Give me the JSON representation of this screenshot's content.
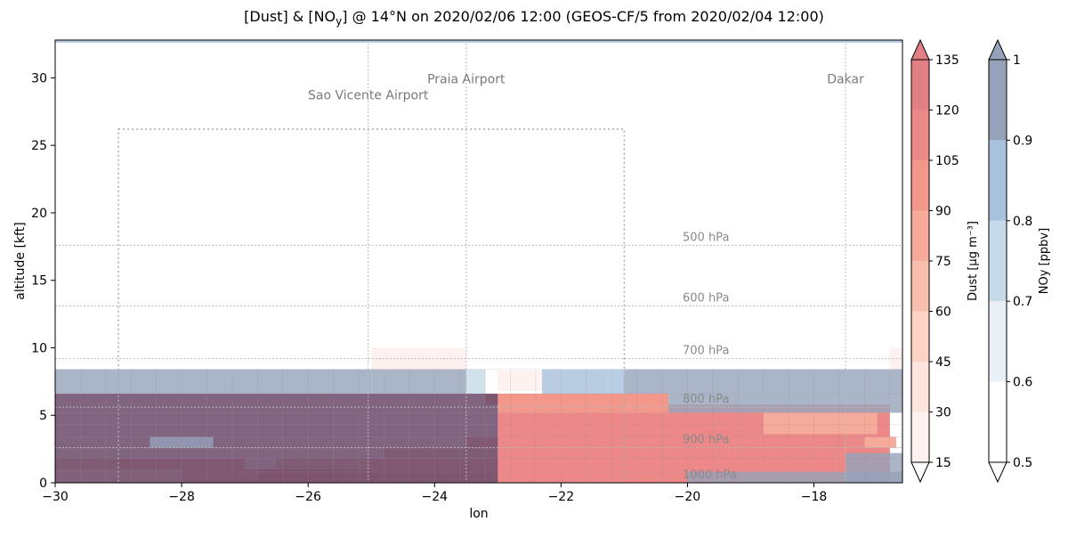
{
  "title": {
    "prefix": "[Dust] & [NO",
    "sub": "y",
    "suffix": "] @ 14°N on 2020/02/06 12:00 (GEOS-CF/5 from 2020/02/04 12:00)"
  },
  "chart_data": {
    "type": "heatmap",
    "xlabel": "lon",
    "ylabel": "altitude [kft]",
    "xlim": [
      -30,
      -16.6
    ],
    "ylim": [
      0,
      32.8
    ],
    "xticks": [
      -30,
      -28,
      -26,
      -24,
      -22,
      -20,
      -18
    ],
    "yticks": [
      0,
      5,
      10,
      15,
      20,
      25,
      30
    ],
    "grid": false,
    "pressure_levels": [
      {
        "label": "500 hPa",
        "alt": 17.6
      },
      {
        "label": "600 hPa",
        "alt": 13.1
      },
      {
        "label": "700 hPa",
        "alt": 9.2
      },
      {
        "label": "800 hPa",
        "alt": 5.6
      },
      {
        "label": "900 hPa",
        "alt": 2.6
      },
      {
        "label": "1000 hPa",
        "alt": 0.0
      }
    ],
    "locations": [
      {
        "name": "Sao Vicente Airport",
        "lon": -25.05,
        "label_alt": 28.4
      },
      {
        "name": "Praia Airport",
        "lon": -23.5,
        "label_alt": 29.6
      },
      {
        "name": "Dakar",
        "lon": -17.5,
        "label_alt": 29.6
      }
    ],
    "region_box": {
      "lon": [
        -29.0,
        -21.0
      ],
      "alt": [
        0,
        26.2
      ]
    },
    "dust_colorbar": {
      "label": "Dust [μg m⁻³]",
      "ticks": [
        15,
        30,
        45,
        60,
        75,
        90,
        105,
        120,
        135
      ],
      "extend": "both",
      "colors": [
        "#fdf2ef",
        "#fde4dc",
        "#fcd3c5",
        "#f9bfae",
        "#f6aa99",
        "#f2978a",
        "#ec8888",
        "#e27f84"
      ]
    },
    "noy_colorbar": {
      "label": "NOy [ppbv]",
      "ticks": [
        0.5,
        0.6,
        0.7,
        0.8,
        0.9,
        1.0
      ],
      "extend": "both",
      "colors": [
        "#ffffff",
        "#e9f1f7",
        "#c6dbe9",
        "#a8c2dd",
        "#95a2b9"
      ]
    },
    "dust_bands": [
      {
        "lon": [
          -30.0,
          -29.0
        ],
        "alt": [
          0.0,
          1.0
        ],
        "value": 35
      },
      {
        "lon": [
          -30.0,
          -29.0
        ],
        "alt": [
          1.0,
          1.8
        ],
        "value": 60
      },
      {
        "lon": [
          -29.0,
          -28.0
        ],
        "alt": [
          0.0,
          1.0
        ],
        "value": 45
      },
      {
        "lon": [
          -29.0,
          -27.0
        ],
        "alt": [
          1.0,
          1.8
        ],
        "value": 80
      },
      {
        "lon": [
          -28.0,
          -26.8
        ],
        "alt": [
          0.0,
          1.0
        ],
        "value": 85
      },
      {
        "lon": [
          -26.8,
          -25.5
        ],
        "alt": [
          0.0,
          1.0
        ],
        "value": 105
      },
      {
        "lon": [
          -25.5,
          -23.0
        ],
        "alt": [
          0.0,
          1.0
        ],
        "value": 90
      },
      {
        "lon": [
          -26.5,
          -25.0
        ],
        "alt": [
          1.0,
          1.8
        ],
        "value": 60
      },
      {
        "lon": [
          -25.0,
          -23.0
        ],
        "alt": [
          1.0,
          1.8
        ],
        "value": 85
      },
      {
        "lon": [
          -24.8,
          -23.0
        ],
        "alt": [
          1.8,
          2.6
        ],
        "value": 65
      },
      {
        "lon": [
          -23.5,
          -23.0
        ],
        "alt": [
          2.6,
          3.4
        ],
        "value": 75
      },
      {
        "lon": [
          -23.0,
          -16.8
        ],
        "alt": [
          0.0,
          5.2
        ],
        "value": 112
      },
      {
        "lon": [
          -23.0,
          -16.8
        ],
        "alt": [
          5.2,
          5.8
        ],
        "value": 100
      },
      {
        "lon": [
          -23.2,
          -20.3
        ],
        "alt": [
          5.8,
          6.6
        ],
        "value": 95
      },
      {
        "lon": [
          -18.8,
          -17.0
        ],
        "alt": [
          3.6,
          5.2
        ],
        "value": 80
      },
      {
        "lon": [
          -17.2,
          -16.7
        ],
        "alt": [
          2.6,
          3.4
        ],
        "value": 75
      },
      {
        "lon": [
          -25.0,
          -23.5
        ],
        "alt": [
          8.3,
          10.0
        ],
        "value": 22
      },
      {
        "lon": [
          -23.0,
          -21.3
        ],
        "alt": [
          6.8,
          8.3
        ],
        "value": 20
      },
      {
        "lon": [
          -16.8,
          -16.6
        ],
        "alt": [
          8.3,
          10.0
        ],
        "value": 20
      }
    ],
    "noy_bands": [
      {
        "lon": [
          -30.0,
          -29.5
        ],
        "alt": [
          6.6,
          8.4
        ],
        "value": 0.92
      },
      {
        "lon": [
          -29.5,
          -28.0
        ],
        "alt": [
          6.6,
          8.4
        ],
        "value": 0.96
      },
      {
        "lon": [
          -28.0,
          -25.0
        ],
        "alt": [
          6.6,
          8.4
        ],
        "value": 0.98
      },
      {
        "lon": [
          -25.0,
          -23.5
        ],
        "alt": [
          6.6,
          8.4
        ],
        "value": 0.96
      },
      {
        "lon": [
          -23.5,
          -23.2
        ],
        "alt": [
          6.6,
          8.4
        ],
        "value": 0.73
      },
      {
        "lon": [
          -22.3,
          -21.5
        ],
        "alt": [
          6.6,
          8.4
        ],
        "value": 0.83
      },
      {
        "lon": [
          -21.5,
          -21.0
        ],
        "alt": [
          6.6,
          8.4
        ],
        "value": 0.87
      },
      {
        "lon": [
          -21.0,
          -16.6
        ],
        "alt": [
          6.6,
          8.4
        ],
        "value": 0.97
      },
      {
        "lon": [
          -30.0,
          -23.0
        ],
        "alt": [
          0.0,
          6.6
        ],
        "value": 1.02
      },
      {
        "lon": [
          -28.5,
          -27.5
        ],
        "alt": [
          2.6,
          3.4
        ],
        "value": 0.94
      },
      {
        "lon": [
          -20.3,
          -18.8
        ],
        "alt": [
          5.2,
          6.6
        ],
        "value": 0.97
      },
      {
        "lon": [
          -18.8,
          -16.6
        ],
        "alt": [
          5.2,
          6.6
        ],
        "value": 1.0
      },
      {
        "lon": [
          -17.5,
          -16.6
        ],
        "alt": [
          0.0,
          2.2
        ],
        "value": 1.0
      },
      {
        "lon": [
          -20.0,
          -16.6
        ],
        "alt": [
          0.0,
          0.8
        ],
        "value": 1.0
      },
      {
        "lon": [
          -30.0,
          -16.6
        ],
        "alt": [
          32.6,
          32.8
        ],
        "value": 0.85
      }
    ]
  }
}
